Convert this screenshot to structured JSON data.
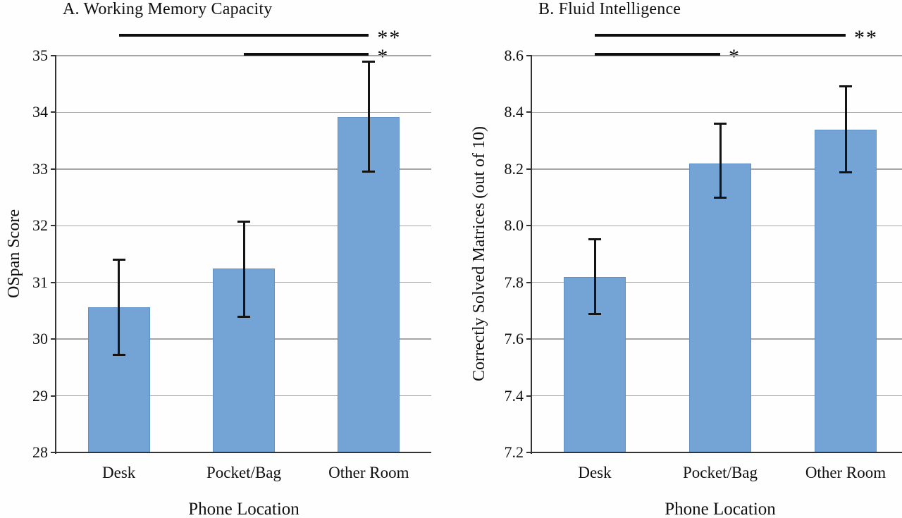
{
  "figure": {
    "background": "#fefefe",
    "bar_fill": "#74a3d6",
    "bar_border": "#6190c5",
    "grid_color": "#a5a5a5",
    "axis_color": "#333333",
    "error_color": "#141414",
    "sig_color": "#0d0d0d",
    "text_color": "#101010"
  },
  "chart_data": [
    {
      "type": "bar",
      "panel_label": "A",
      "title": "A. Working Memory Capacity",
      "xlabel": "Phone Location",
      "ylabel": "OSpan Score",
      "categories": [
        "Desk",
        "Pocket/Bag",
        "Other Room"
      ],
      "values": [
        30.56,
        31.24,
        33.92
      ],
      "error_low": [
        29.73,
        30.4,
        32.96
      ],
      "error_high": [
        31.4,
        32.07,
        34.89
      ],
      "ylim": [
        28,
        35
      ],
      "ytick_step": 1,
      "ytick_labels": [
        "35",
        "34",
        "33",
        "32",
        "31",
        "30",
        "29",
        "28"
      ],
      "grid": true,
      "legend": "none",
      "significance": [
        {
          "from": "Desk",
          "to": "Other Room",
          "label": "**",
          "row": 0
        },
        {
          "from": "Pocket/Bag",
          "to": "Other Room",
          "label": "*",
          "row": 1
        }
      ]
    },
    {
      "type": "bar",
      "panel_label": "B",
      "title": "B. Fluid Intelligence",
      "xlabel": "Phone Location",
      "ylabel": "Correctly Solved Matrices (out of 10)",
      "categories": [
        "Desk",
        "Pocket/Bag",
        "Other Room"
      ],
      "values": [
        7.82,
        8.22,
        8.34
      ],
      "error_low": [
        7.69,
        8.1,
        8.19
      ],
      "error_high": [
        7.95,
        8.36,
        8.49
      ],
      "ylim": [
        7.2,
        8.6
      ],
      "ytick_step": 0.2,
      "ytick_labels": [
        "8.6",
        "8.4",
        "8.2",
        "8.0",
        "7.8",
        "7.6",
        "7.4",
        "7.2"
      ],
      "grid": true,
      "legend": "none",
      "significance": [
        {
          "from": "Desk",
          "to": "Other Room",
          "label": "**",
          "row": 0
        },
        {
          "from": "Desk",
          "to": "Pocket/Bag",
          "label": "*",
          "row": 1
        }
      ]
    }
  ]
}
